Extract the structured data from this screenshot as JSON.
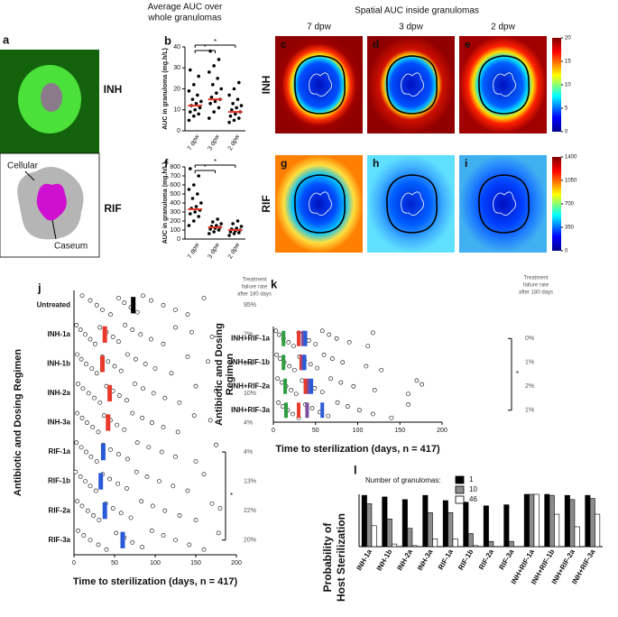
{
  "headings": {
    "average": [
      "Average AUC over",
      "whole granulomas"
    ],
    "spatial": "Spatial AUC inside granulomas"
  },
  "panel_a": {
    "label": "a",
    "cellular": "Cellular",
    "caseum": "Caseum"
  },
  "heatmaps": {
    "columns": [
      "7 dpw",
      "3 dpw",
      "2 dpw"
    ],
    "rows": [
      {
        "name": "INH",
        "labels": [
          "c",
          "d",
          "e"
        ],
        "clim": [
          0,
          20
        ],
        "colorbar_ticks": [
          0,
          5,
          10,
          15,
          20
        ]
      },
      {
        "name": "RIF",
        "labels": [
          "g",
          "h",
          "i"
        ],
        "clim": [
          0,
          1400
        ],
        "colorbar_ticks": [
          0,
          350,
          700,
          1050,
          1400
        ]
      }
    ]
  },
  "chart_data": [
    {
      "type": "dot",
      "label": "b",
      "row_label": "INH",
      "ylabel": "AUC in granuloma (mg.h/L)",
      "categories": [
        "7 dpw",
        "3 dpw",
        "2 dpw"
      ],
      "medians": [
        12,
        15,
        9
      ],
      "median_color": "#e8392b",
      "points": [
        [
          5,
          7,
          8,
          9,
          10,
          11,
          12,
          13,
          14,
          15,
          17,
          19,
          22,
          26,
          29
        ],
        [
          6,
          9,
          11,
          13,
          14,
          15,
          16,
          18,
          20,
          22,
          25,
          28,
          31,
          34,
          38
        ],
        [
          4,
          5,
          6,
          7,
          8,
          9,
          10,
          11,
          12,
          13,
          15,
          17,
          20,
          23
        ]
      ],
      "ylim": [
        0,
        40
      ],
      "yticks": [
        0,
        10,
        20,
        30,
        40
      ],
      "significance": [
        "*",
        "*"
      ]
    },
    {
      "type": "dot",
      "label": "f",
      "row_label": "RIF",
      "ylabel": "AUC in granuloma (mg.h/L)",
      "categories": [
        "7 dpw",
        "3 dpw",
        "2 dpw"
      ],
      "medians": [
        330,
        130,
        100
      ],
      "median_color": "#e8392b",
      "points": [
        [
          150,
          200,
          250,
          280,
          300,
          320,
          340,
          360,
          400,
          450,
          500,
          550,
          600,
          700,
          780
        ],
        [
          60,
          80,
          100,
          110,
          120,
          130,
          140,
          150,
          170,
          190,
          220
        ],
        [
          40,
          60,
          70,
          80,
          90,
          100,
          110,
          120,
          140,
          170,
          200
        ]
      ],
      "ylim": [
        0,
        800
      ],
      "yticks": [
        0,
        100,
        200,
        300,
        400,
        500,
        600,
        700,
        800
      ],
      "significance": [
        "*",
        "*"
      ]
    },
    {
      "type": "strip",
      "label": "j",
      "ylabel": "Antibiotic and Dosing Regimen",
      "xlabel": "Time to sterilization (days, n = 417)",
      "categories": [
        "Untreated",
        "INH-1a",
        "INH-1b",
        "INH-2a",
        "INH-3a",
        "RIF-1a",
        "RIF-1b",
        "RIF-2a",
        "RIF-3a"
      ],
      "medians": [
        73,
        38,
        35,
        44,
        42,
        36,
        33,
        38,
        60
      ],
      "median_colors": [
        "#000000",
        "#e8392b",
        "#e8392b",
        "#e8392b",
        "#e8392b",
        "#2a5bd7",
        "#2a5bd7",
        "#2a5bd7",
        "#2a5bd7"
      ],
      "points": [
        [
          10,
          20,
          28,
          35,
          45,
          55,
          62,
          70,
          78,
          85,
          95,
          110,
          125,
          140,
          160
        ],
        [
          3,
          8,
          14,
          20,
          26,
          32,
          40,
          48,
          55,
          63,
          72,
          82,
          95,
          110,
          125,
          145,
          170
        ],
        [
          4,
          9,
          15,
          22,
          28,
          35,
          42,
          50,
          58,
          66,
          76,
          88,
          100,
          120,
          140,
          165
        ],
        [
          5,
          11,
          18,
          25,
          32,
          40,
          48,
          56,
          65,
          75,
          85,
          98,
          112,
          130,
          150,
          175
        ],
        [
          4,
          10,
          16,
          23,
          30,
          37,
          45,
          53,
          62,
          72,
          84,
          96,
          110,
          128,
          148,
          168
        ],
        [
          3,
          9,
          15,
          21,
          28,
          36,
          45,
          55,
          66,
          78,
          92,
          108,
          125,
          150,
          175
        ],
        [
          2,
          8,
          14,
          20,
          27,
          35,
          44,
          54,
          65,
          77,
          90,
          105,
          122,
          140,
          160
        ],
        [
          4,
          10,
          17,
          24,
          31,
          39,
          48,
          58,
          70,
          83,
          97,
          112,
          130,
          150,
          170,
          180
        ],
        [
          5,
          12,
          20,
          30,
          40,
          52,
          62,
          72,
          84,
          96,
          110,
          125,
          142,
          160,
          178
        ]
      ],
      "xlim": [
        0,
        200
      ],
      "xticks": [
        0,
        50,
        100,
        150,
        200
      ],
      "failure_header": [
        "Treatment",
        "failure rate",
        "after 180 days"
      ],
      "failure_rates": [
        "95%",
        "2%",
        "6%",
        "10%",
        "4%",
        "4%",
        "13%",
        "22%",
        "20%"
      ],
      "bracket": "*"
    },
    {
      "type": "strip",
      "label": "k",
      "ylabel": [
        "Antibiotic and Dosing",
        "Regimen"
      ],
      "xlabel": "Time to sterilization (days, n = 417)",
      "categories": [
        "INH+RIF-1a",
        "INH+RIF-1b",
        "INH+RIF-2a",
        "INH+RIF-3a"
      ],
      "series": [
        {
          "color": "#2e9e3e",
          "values": [
            12,
            12,
            14,
            15
          ]
        },
        {
          "color": "#e8392b",
          "values": [
            30,
            33,
            38,
            30
          ]
        },
        {
          "color": "#7b4fa0",
          "values": [
            35,
            35,
            42,
            40
          ]
        },
        {
          "color": "#2a5bd7",
          "values": [
            38,
            37,
            45,
            58
          ]
        }
      ],
      "points": [
        [
          3,
          7,
          12,
          18,
          24,
          30,
          36,
          42,
          50,
          58,
          66,
          75,
          90,
          112,
          118
        ],
        [
          4,
          8,
          13,
          19,
          25,
          31,
          37,
          44,
          52,
          60,
          70,
          82,
          110,
          128
        ],
        [
          5,
          10,
          15,
          21,
          27,
          34,
          41,
          49,
          58,
          68,
          80,
          95,
          120,
          160,
          170,
          176
        ],
        [
          6,
          11,
          17,
          23,
          30,
          38,
          46,
          55,
          65,
          76,
          88,
          102,
          118,
          140,
          160
        ]
      ],
      "xlim": [
        0,
        200
      ],
      "xticks": [
        0,
        50,
        100,
        150,
        200
      ],
      "failure_header": [
        "Treatment",
        "failure rate",
        "after 180 days"
      ],
      "failure_rates": [
        "0%",
        "1%",
        "2%",
        "1%"
      ],
      "bracket": "*"
    },
    {
      "type": "bar",
      "label": "l",
      "ylabel": [
        "Probability of",
        "Host Sterilization"
      ],
      "legend_title": "Number of granulomas:",
      "categories": [
        "INH-1a",
        "INH-1b",
        "INH-2a",
        "INH-3a",
        "RIF-1a",
        "RIF-1b",
        "RIF-2a",
        "RIF-3a",
        "INH+RIF-1a",
        "INH+RIF-1b",
        "INH+RIF-2a",
        "INH+RIF-3a"
      ],
      "series": [
        {
          "name": "1",
          "color": "#000000",
          "values": [
            0.98,
            0.95,
            0.9,
            0.98,
            0.88,
            0.85,
            0.78,
            0.8,
            1.0,
            1.0,
            0.98,
            0.98
          ]
        },
        {
          "name": "10",
          "color": "#8c8c8c",
          "values": [
            0.82,
            0.53,
            0.35,
            0.65,
            0.65,
            0.25,
            0.1,
            0.1,
            1.0,
            0.98,
            0.9,
            0.92
          ]
        },
        {
          "name": "46",
          "color": "#ffffff",
          "values": [
            0.4,
            0.05,
            0.02,
            0.15,
            0.15,
            0.02,
            0.0,
            0.0,
            1.0,
            0.62,
            0.38,
            0.62
          ]
        }
      ],
      "ylim": [
        0,
        1
      ]
    }
  ]
}
